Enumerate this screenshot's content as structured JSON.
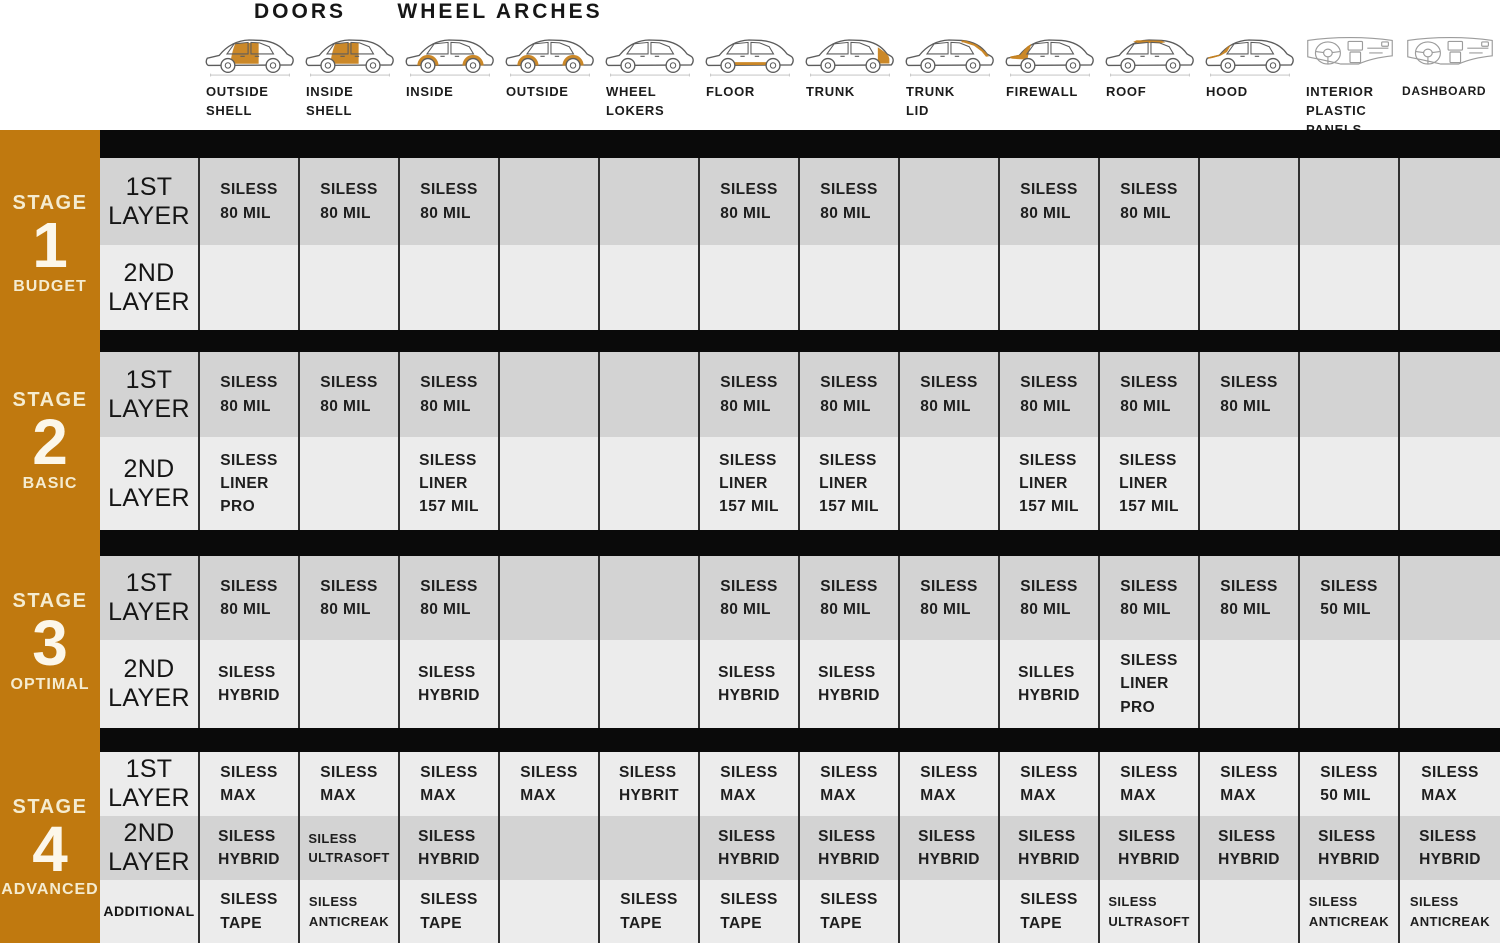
{
  "header": {
    "group_labels": [
      {
        "id": "doors",
        "label": "DOORS"
      },
      {
        "id": "wheel-arches",
        "label": "WHEEL ARCHES"
      }
    ],
    "columns": [
      {
        "id": "outside-shell",
        "label": "OUTSIDE\nSHELL",
        "icon": "car-doors-icon"
      },
      {
        "id": "inside-shell",
        "label": "INSIDE\nSHELL",
        "icon": "car-doors-icon"
      },
      {
        "id": "inside",
        "label": "INSIDE",
        "icon": "car-wheel-arches-icon"
      },
      {
        "id": "outside",
        "label": "OUTSIDE",
        "icon": "car-wheel-arches-icon"
      },
      {
        "id": "wheel-lokers",
        "label": "WHEEL\nLOKERS",
        "icon": "car-plain-icon"
      },
      {
        "id": "floor",
        "label": "FLOOR",
        "icon": "car-floor-icon"
      },
      {
        "id": "trunk",
        "label": "TRUNK",
        "icon": "car-trunk-icon"
      },
      {
        "id": "trunk-lid",
        "label": "TRUNK\nLID",
        "icon": "car-trunk-lid-icon"
      },
      {
        "id": "firewall",
        "label": "FIREWALL",
        "icon": "car-firewall-icon"
      },
      {
        "id": "roof",
        "label": "ROOF",
        "icon": "car-roof-icon"
      },
      {
        "id": "hood",
        "label": "HOOD",
        "icon": "car-hood-icon"
      },
      {
        "id": "interior-plastic-panels",
        "label": "INTERIOR\nPLASTIC\nPANELS",
        "icon": "dashboard-icon"
      },
      {
        "id": "dashboard",
        "label": "DASHBOARD",
        "icon": "dashboard-icon"
      }
    ]
  },
  "colors": {
    "accent_orange": "#c0790f",
    "highlight_orange": "#c8821c",
    "row_dark": "#d3d3d3",
    "row_light": "#ececec",
    "bar_black": "#0a0a0a"
  },
  "stages": [
    {
      "stage_label": "STAGE",
      "number": "1",
      "name": "BUDGET",
      "rows": [
        {
          "label": "1ST\nLAYER",
          "shade": "dark",
          "cells": [
            "SILESS\n80 MIL",
            "SILESS\n80 MIL",
            "SILESS\n80 MIL",
            "",
            "",
            "SILESS\n80 MIL",
            "SILESS\n80 MIL",
            "",
            "SILESS\n80 MIL",
            "SILESS\n80 MIL",
            "",
            "",
            ""
          ]
        },
        {
          "label": "2ND\nLAYER",
          "shade": "light",
          "cells": [
            "",
            "",
            "",
            "",
            "",
            "",
            "",
            "",
            "",
            "",
            "",
            "",
            ""
          ]
        }
      ]
    },
    {
      "stage_label": "STAGE",
      "number": "2",
      "name": "BASIC",
      "rows": [
        {
          "label": "1ST\nLAYER",
          "shade": "dark",
          "cells": [
            "SILESS\n80 MIL",
            "SILESS\n80 MIL",
            "SILESS\n80 MIL",
            "",
            "",
            "SILESS\n80 MIL",
            "SILESS\n80 MIL",
            "SILESS\n80 MIL",
            "SILESS\n80 MIL",
            "SILESS\n80 MIL",
            "SILESS\n80 MIL",
            "",
            ""
          ]
        },
        {
          "label": "2ND\nLAYER",
          "shade": "light",
          "cells": [
            "SILESS\nLINER\nPRO",
            "",
            "SILESS\nLINER\n157 MIL",
            "",
            "",
            "SILESS\nLINER\n157 MIL",
            "SILESS\nLINER\n157 MIL",
            "",
            "SILESS\nLINER\n157 MIL",
            "SILESS\nLINER\n157 MIL",
            "",
            "",
            ""
          ]
        }
      ]
    },
    {
      "stage_label": "STAGE",
      "number": "3",
      "name": "OPTIMAL",
      "rows": [
        {
          "label": "1ST\nLAYER",
          "shade": "dark",
          "cells": [
            "SILESS\n80 MIL",
            "SILESS\n80 MIL",
            "SILESS\n80 MIL",
            "",
            "",
            "SILESS\n80 MIL",
            "SILESS\n80 MIL",
            "SILESS\n80 MIL",
            "SILESS\n80 MIL",
            "SILESS\n80 MIL",
            "SILESS\n80 MIL",
            "SILESS\n50 MIL",
            ""
          ]
        },
        {
          "label": "2ND\nLAYER",
          "shade": "light",
          "cells": [
            "SILESS\nHYBRID",
            "",
            "SILESS\nHYBRID",
            "",
            "",
            "SILESS\nHYBRID",
            "SILESS\nHYBRID",
            "",
            "SILLES\nHYBRID",
            "SILESS\nLINER\nPRO",
            "",
            "",
            ""
          ]
        }
      ]
    },
    {
      "stage_label": "STAGE",
      "number": "4",
      "name": "ADVANCED",
      "rows": [
        {
          "label": "1ST\nLAYER",
          "shade": "light",
          "cells": [
            "SILESS\nMAX",
            "SILESS\nMAX",
            "SILESS\nMAX",
            "SILESS\nMAX",
            "SILESS\nHYBRIT",
            "SILESS\nMAX",
            "SILESS\nMAX",
            "SILESS\nMAX",
            "SILESS\nMAX",
            "SILESS\nMAX",
            "SILESS\nMAX",
            "SILESS\n50 MIL",
            "SILESS\nMAX"
          ]
        },
        {
          "label": "2ND\nLAYER",
          "shade": "dark",
          "cells": [
            "SILESS\nHYBRID",
            "SILESS\nULTRASOFT",
            "SILESS\nHYBRID",
            "",
            "",
            "SILESS\nHYBRID",
            "SILESS\nHYBRID",
            "SILESS\nHYBRID",
            "SILESS\nHYBRID",
            "SILESS\nHYBRID",
            "SILESS\nHYBRID",
            "SILESS\nHYBRID",
            "SILESS\nHYBRID"
          ]
        },
        {
          "label": "ADDITIONAL",
          "shade": "light",
          "cells": [
            "SILESS\nTAPE",
            "SILESS\nANTICREAK",
            "SILESS\nTAPE",
            "",
            "SILESS\nTAPE",
            "SILESS\nTAPE",
            "SILESS\nTAPE",
            "",
            "SILESS\nTAPE",
            "SILESS\nULTRASOFT",
            "",
            "SILESS\nANTICREAK",
            "SILESS\nANTICREAK"
          ]
        }
      ]
    }
  ]
}
